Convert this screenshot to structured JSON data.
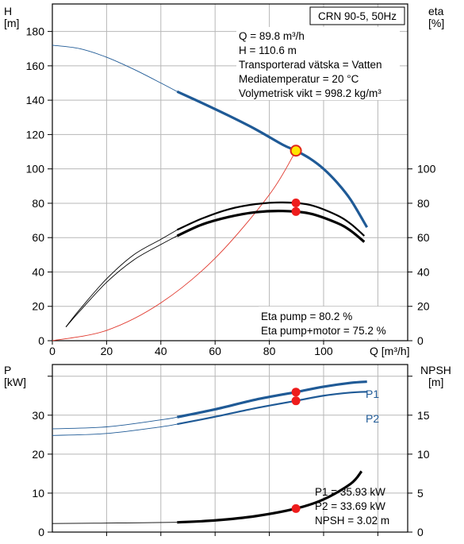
{
  "chart_data": [
    {
      "type": "line",
      "title": "CRN 90-5, 50Hz",
      "left_axis": {
        "label": "H",
        "unit": "[m]",
        "ticks": [
          0,
          20,
          40,
          60,
          80,
          100,
          120,
          140,
          160,
          180
        ],
        "ylim": [
          0,
          196
        ]
      },
      "right_axis": {
        "label": "eta",
        "unit": "[%]",
        "ticks": [
          0,
          20,
          40,
          60,
          80,
          100
        ],
        "ylim": [
          0,
          196
        ]
      },
      "x_axis": {
        "label": "Q [m³/h]",
        "ticks": [
          0,
          20,
          40,
          60,
          80,
          100
        ],
        "xlim": [
          0,
          131
        ]
      },
      "grid": true,
      "info_lines": [
        "Q = 89.8 m³/h",
        "H = 110.6 m",
        "Transporterad vätska = Vatten",
        "Mediatemperatur = 20 °C",
        "Volymetrisk vikt = 998.2 kg/m³"
      ],
      "eta_labels": [
        "Eta pump = 80.2 %",
        "Eta pump+motor = 75.2 %"
      ],
      "series": [
        {
          "x": [
            0,
            10,
            20,
            30,
            40,
            46
          ],
          "y": [
            172,
            170,
            165,
            158,
            150,
            145
          ]
        },
        {
          "x": [
            46,
            55,
            65,
            75,
            85,
            89.8,
            95,
            100,
            105,
            110,
            116
          ],
          "y": [
            145,
            138.5,
            131,
            123,
            114,
            110.6,
            106,
            100,
            92,
            82,
            66
          ]
        },
        {
          "x": [
            5,
            10,
            20,
            30,
            40,
            46
          ],
          "y": [
            8,
            18,
            36,
            50,
            59,
            64.5
          ]
        },
        {
          "x": [
            46,
            55,
            65,
            75,
            85,
            95,
            105,
            110,
            115
          ],
          "y": [
            64.5,
            71,
            76.5,
            79.5,
            80.5,
            79,
            73,
            68,
            61
          ]
        },
        {
          "x": [
            5,
            10,
            20,
            30,
            40,
            46
          ],
          "y": [
            8,
            17,
            34,
            47,
            56,
            61
          ]
        },
        {
          "x": [
            46,
            55,
            65,
            75,
            85,
            95,
            105,
            110,
            115
          ],
          "y": [
            61,
            67.5,
            72,
            74.8,
            75.5,
            74,
            68.5,
            64,
            57.5
          ]
        },
        {
          "x": [
            0,
            20,
            40,
            60,
            80,
            89.8
          ],
          "y": [
            0,
            6,
            22,
            48,
            85,
            110.6
          ]
        }
      ],
      "duty_points": [
        {
          "x": 89.8,
          "y": 110.6
        },
        {
          "x": 89.8,
          "y": 80.2
        },
        {
          "x": 89.8,
          "y": 75.2
        }
      ]
    },
    {
      "type": "line",
      "left_axis": {
        "label": "P",
        "unit": "[kW]",
        "ticks": [
          0,
          10,
          20,
          30
        ],
        "ylim": [
          0,
          43
        ]
      },
      "right_axis": {
        "label": "NPSH",
        "unit": "[m]",
        "ticks": [
          0,
          5,
          10,
          15
        ],
        "ylim": [
          0,
          21.5
        ]
      },
      "x_axis": {
        "xlim": [
          0,
          131
        ]
      },
      "grid": true,
      "info_lines": [
        "P1 = 35.93 kW",
        "P2 = 33.69 kW",
        "NPSH = 3.02 m"
      ],
      "series": [
        {
          "name": "P1",
          "x": [
            0,
            20,
            40,
            46
          ],
          "y": [
            26.5,
            27,
            28.8,
            29.5
          ]
        },
        {
          "name": "P1",
          "x": [
            46,
            60,
            75,
            89.8,
            100,
            110,
            116
          ],
          "y": [
            29.5,
            31.5,
            34,
            35.93,
            37.3,
            38.3,
            38.6
          ]
        },
        {
          "name": "P2",
          "x": [
            0,
            20,
            40,
            46
          ],
          "y": [
            24.8,
            25.3,
            27,
            27.7
          ]
        },
        {
          "name": "P2",
          "x": [
            46,
            60,
            75,
            89.8,
            100,
            110,
            116
          ],
          "y": [
            27.7,
            29.6,
            31.8,
            33.69,
            35,
            35.8,
            36
          ]
        },
        {
          "x": [
            0,
            20,
            46
          ],
          "y": [
            1.1,
            1.15,
            1.25
          ]
        },
        {
          "x": [
            46,
            60,
            75,
            89.8,
            100,
            110,
            114
          ],
          "y": [
            1.25,
            1.5,
            2.05,
            3.02,
            4.2,
            6.2,
            7.8
          ]
        }
      ],
      "duty_points": [
        {
          "x": 89.8,
          "y": 35.93
        },
        {
          "x": 89.8,
          "y": 33.69
        },
        {
          "x": 89.8,
          "y": 3.02
        }
      ]
    }
  ]
}
